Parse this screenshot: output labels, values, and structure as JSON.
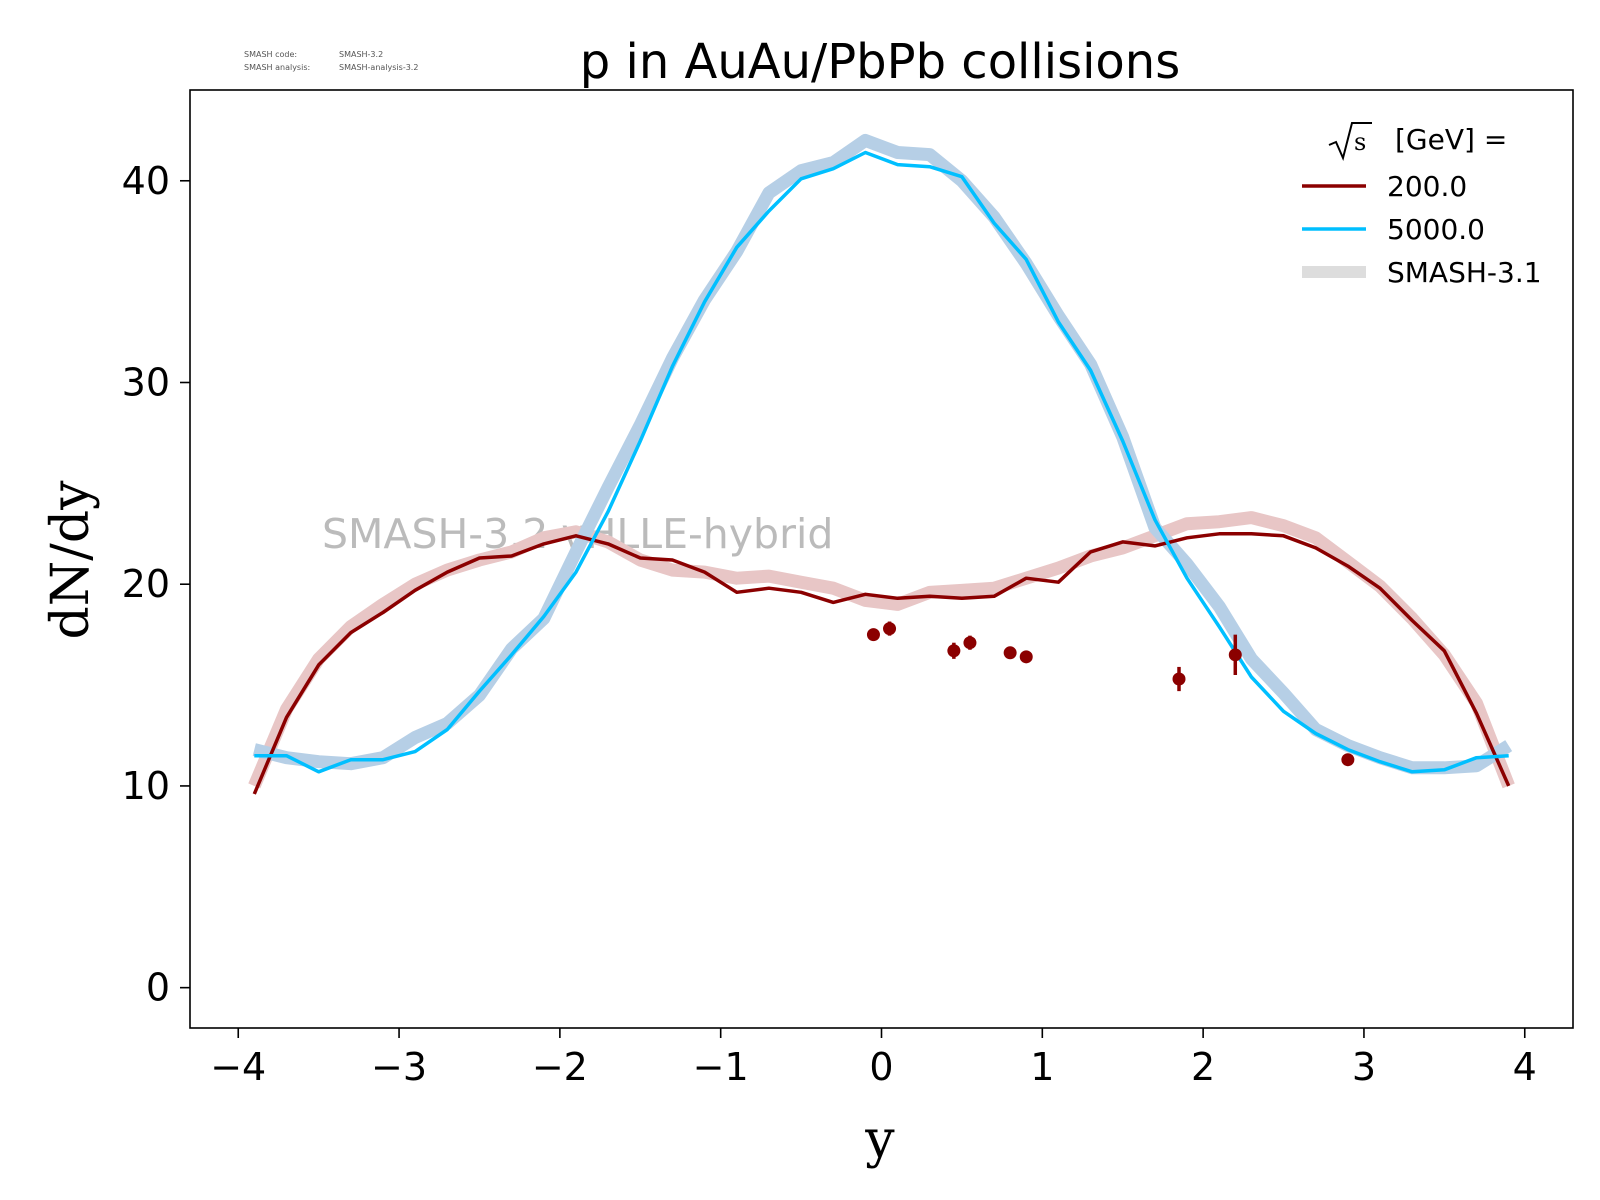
{
  "chart_data": {
    "type": "line",
    "title": "p in AuAu/PbPb collisions",
    "xlabel": "y",
    "ylabel": "dN/dy",
    "xlim": [
      -4.3,
      4.3
    ],
    "ylim": [
      -2,
      44.5
    ],
    "xticks": [
      {
        "value": -4,
        "label": "−4"
      },
      {
        "value": -3,
        "label": "−3"
      },
      {
        "value": -2,
        "label": "−2"
      },
      {
        "value": -1,
        "label": "−1"
      },
      {
        "value": 0,
        "label": "0"
      },
      {
        "value": 1,
        "label": "1"
      },
      {
        "value": 2,
        "label": "2"
      },
      {
        "value": 3,
        "label": "3"
      },
      {
        "value": 4,
        "label": "4"
      }
    ],
    "yticks": [
      {
        "value": 0,
        "label": "0"
      },
      {
        "value": 10,
        "label": "10"
      },
      {
        "value": 20,
        "label": "20"
      },
      {
        "value": 30,
        "label": "30"
      },
      {
        "value": 40,
        "label": "40"
      }
    ],
    "grid": false,
    "legend": {
      "position": "top-right",
      "title_prefix": "√s",
      "title_suffix": "[GeV] =",
      "entries": [
        "200.0",
        "5000.0",
        "SMASH-3.1"
      ]
    },
    "watermark": "SMASH-3.2 vHLLE-hybrid",
    "version_info": [
      {
        "label": "SMASH code:",
        "value": "SMASH-3.2"
      },
      {
        "label": "SMASH analysis:",
        "value": "SMASH-analysis-3.2"
      }
    ],
    "x": [
      -3.9,
      -3.7,
      -3.5,
      -3.3,
      -3.1,
      -2.9,
      -2.7,
      -2.5,
      -2.3,
      -2.1,
      -1.9,
      -1.7,
      -1.5,
      -1.3,
      -1.1,
      -0.9,
      -0.7,
      -0.5,
      -0.3,
      -0.1,
      0.1,
      0.3,
      0.5,
      0.7,
      0.9,
      1.1,
      1.3,
      1.5,
      1.7,
      1.9,
      2.1,
      2.3,
      2.5,
      2.7,
      2.9,
      3.1,
      3.3,
      3.5,
      3.7,
      3.9
    ],
    "series": [
      {
        "name": "200.0",
        "color": "#8b0000",
        "values": [
          9.6,
          13.4,
          16.0,
          17.6,
          18.6,
          19.7,
          20.6,
          21.3,
          21.4,
          22.0,
          22.4,
          22.0,
          21.3,
          21.2,
          20.6,
          19.6,
          19.8,
          19.6,
          19.1,
          19.5,
          19.3,
          19.4,
          19.3,
          19.4,
          20.3,
          20.1,
          21.6,
          22.1,
          21.9,
          22.3,
          22.5,
          22.5,
          22.4,
          21.8,
          20.9,
          19.8,
          18.2,
          16.7,
          13.6,
          10.0
        ]
      },
      {
        "name": "5000.0",
        "color": "#00bfff",
        "values": [
          11.5,
          11.5,
          10.7,
          11.3,
          11.3,
          11.7,
          12.8,
          14.7,
          16.5,
          18.4,
          20.6,
          23.6,
          27.1,
          30.8,
          34.0,
          36.7,
          38.5,
          40.1,
          40.6,
          41.4,
          40.8,
          40.7,
          40.2,
          37.9,
          36.1,
          33.0,
          30.6,
          27.1,
          23.2,
          20.3,
          17.9,
          15.4,
          13.7,
          12.6,
          11.8,
          11.2,
          10.7,
          10.8,
          11.4,
          11.5
        ]
      }
    ],
    "reference": {
      "name": "SMASH-3.1",
      "legend_color": "#dddddd",
      "series": [
        {
          "for": "200.0",
          "color": "#e8c6c6",
          "values": [
            10.0,
            13.8,
            16.3,
            17.9,
            19.0,
            20.0,
            20.7,
            21.2,
            21.6,
            22.3,
            22.6,
            22.1,
            21.2,
            20.7,
            20.6,
            20.3,
            20.4,
            20.1,
            19.8,
            19.2,
            19.0,
            19.6,
            19.7,
            19.8,
            20.3,
            20.8,
            21.4,
            21.8,
            22.4,
            23.0,
            23.1,
            23.3,
            22.9,
            22.3,
            21.1,
            19.9,
            18.3,
            16.5,
            14.1,
            10.0
          ]
        },
        {
          "for": "5000.0",
          "color": "#b6cfe6",
          "values": [
            11.8,
            11.4,
            11.2,
            11.1,
            11.4,
            12.4,
            13.1,
            14.5,
            16.8,
            18.3,
            21.6,
            24.8,
            27.9,
            31.2,
            34.1,
            36.5,
            39.4,
            40.5,
            40.9,
            42.0,
            41.4,
            41.3,
            40.0,
            38.2,
            35.9,
            33.3,
            30.9,
            27.3,
            22.8,
            21.0,
            18.9,
            16.3,
            14.6,
            12.8,
            12.0,
            11.4,
            10.9,
            10.9,
            11.0,
            12.0
          ]
        }
      ]
    },
    "measurements": {
      "color": "#8b0000",
      "points": [
        {
          "x": -0.05,
          "y": 17.5,
          "err": 0.25
        },
        {
          "x": 0.05,
          "y": 17.8,
          "err": 0.35
        },
        {
          "x": 0.45,
          "y": 16.7,
          "err": 0.4
        },
        {
          "x": 0.55,
          "y": 17.1,
          "err": 0.35
        },
        {
          "x": 0.8,
          "y": 16.6,
          "err": 0.2
        },
        {
          "x": 0.9,
          "y": 16.4,
          "err": 0.2
        },
        {
          "x": 1.85,
          "y": 15.3,
          "err": 0.6
        },
        {
          "x": 2.2,
          "y": 16.5,
          "err": 1.0
        },
        {
          "x": 2.9,
          "y": 11.3,
          "err": 0.2
        }
      ]
    }
  }
}
